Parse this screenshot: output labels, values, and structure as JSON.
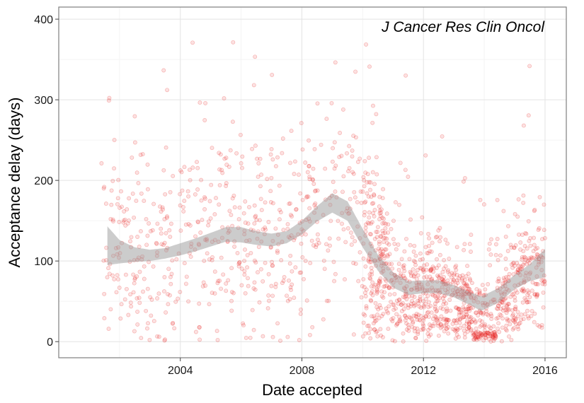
{
  "chart_data": {
    "type": "scatter",
    "annotation": "J Cancer Res Clin Oncol",
    "xlabel": "Date accepted",
    "ylabel": "Acceptance delay (days)",
    "xlim": [
      2000.0,
      2016.7
    ],
    "ylim": [
      -20,
      415
    ],
    "x_ticks": [
      2004,
      2008,
      2012,
      2016
    ],
    "x_tick_labels": [
      "2004",
      "2008",
      "2012",
      "2016"
    ],
    "y_ticks": [
      0,
      100,
      200,
      300,
      400
    ],
    "y_tick_labels": [
      "0",
      "100",
      "200",
      "300",
      "400"
    ],
    "grid": true,
    "point_color": "#e8201e",
    "band_color": "#999999",
    "smooth_band": [
      {
        "x": 2001.6,
        "lo": 95,
        "hi": 143
      },
      {
        "x": 2002.0,
        "lo": 97,
        "hi": 126
      },
      {
        "x": 2002.5,
        "lo": 99,
        "hi": 117
      },
      {
        "x": 2003.0,
        "lo": 100,
        "hi": 114
      },
      {
        "x": 2003.5,
        "lo": 103,
        "hi": 116
      },
      {
        "x": 2004.0,
        "lo": 107,
        "hi": 122
      },
      {
        "x": 2004.5,
        "lo": 112,
        "hi": 128
      },
      {
        "x": 2005.0,
        "lo": 118,
        "hi": 135
      },
      {
        "x": 2005.5,
        "lo": 124,
        "hi": 142
      },
      {
        "x": 2006.0,
        "lo": 123,
        "hi": 142
      },
      {
        "x": 2006.5,
        "lo": 120,
        "hi": 137
      },
      {
        "x": 2007.0,
        "lo": 118,
        "hi": 134
      },
      {
        "x": 2007.5,
        "lo": 122,
        "hi": 137
      },
      {
        "x": 2008.0,
        "lo": 133,
        "hi": 150
      },
      {
        "x": 2008.5,
        "lo": 149,
        "hi": 168
      },
      {
        "x": 2009.0,
        "lo": 160,
        "hi": 184
      },
      {
        "x": 2009.5,
        "lo": 150,
        "hi": 174
      },
      {
        "x": 2010.0,
        "lo": 117,
        "hi": 140
      },
      {
        "x": 2010.5,
        "lo": 88,
        "hi": 108
      },
      {
        "x": 2011.0,
        "lo": 67,
        "hi": 86
      },
      {
        "x": 2011.5,
        "lo": 58,
        "hi": 75
      },
      {
        "x": 2012.0,
        "lo": 60,
        "hi": 76
      },
      {
        "x": 2012.5,
        "lo": 60,
        "hi": 76
      },
      {
        "x": 2013.0,
        "lo": 55,
        "hi": 70
      },
      {
        "x": 2013.5,
        "lo": 46,
        "hi": 62
      },
      {
        "x": 2013.9,
        "lo": 38,
        "hi": 56
      },
      {
        "x": 2014.5,
        "lo": 49,
        "hi": 67
      },
      {
        "x": 2015.0,
        "lo": 65,
        "hi": 83
      },
      {
        "x": 2015.5,
        "lo": 75,
        "hi": 96
      },
      {
        "x": 2016.0,
        "lo": 80,
        "hi": 115
      }
    ]
  }
}
